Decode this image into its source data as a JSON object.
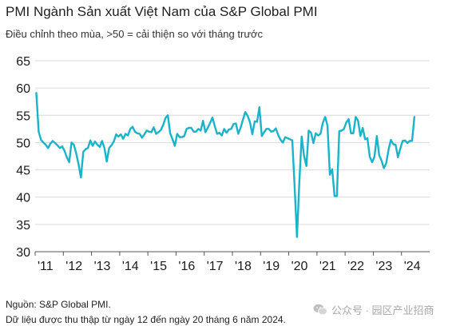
{
  "title": "PMI Ngành Sản xuất Việt Nam của S&P Global PMI",
  "subtitle": "Điều chỉnh theo mùa, >50 = cải thiện so với tháng trước",
  "source": "Nguồn: S&P Global PMI.",
  "note": "Dữ liệu được thu thập từ ngày 12 đến ngày 20 tháng 6 năm 2024.",
  "watermark": {
    "icon": "wechat-icon",
    "text": "公众号 · 园区产业招商"
  },
  "colors": {
    "line": "#1ab3c9",
    "grid": "#d9d9d9",
    "axis": "#555555",
    "text": "#1a1a1a"
  },
  "chart_data": {
    "type": "line",
    "title": "PMI Ngành Sản xuất Việt Nam của S&P Global PMI",
    "subtitle": "Điều chỉnh theo mùa, >50 = cải thiện so với tháng trước",
    "xlabel": "",
    "ylabel": "",
    "ylim": [
      30,
      65
    ],
    "yticks": [
      30,
      35,
      40,
      45,
      50,
      55,
      60,
      65
    ],
    "xticks": [
      "'11",
      "'12",
      "'13",
      "'14",
      "'15",
      "'16",
      "'17",
      "'18",
      "'19",
      "'20",
      "'21",
      "'22",
      "'23",
      "'24"
    ],
    "grid": "horizontal",
    "legend": "none",
    "series": [
      {
        "values": [
          59.1,
          52.0,
          50.5,
          50.0,
          49.6,
          49.0,
          49.8,
          50.3,
          49.9,
          49.5,
          49.0,
          49.3,
          48.5,
          47.3,
          46.4,
          50.0,
          49.6,
          48.0,
          46.0,
          43.6,
          48.3,
          48.8,
          49.0,
          50.4,
          49.4,
          50.2,
          49.6,
          49.2,
          50.3,
          49.0,
          46.5,
          49.0,
          49.5,
          50.2,
          51.5,
          51.1,
          51.5,
          50.7,
          51.6,
          51.3,
          52.5,
          52.9,
          52.0,
          51.7,
          51.6,
          50.9,
          51.5,
          52.2,
          52.0,
          51.9,
          52.8,
          51.6,
          51.9,
          52.3,
          53.2,
          54.5,
          55.0,
          51.7,
          50.6,
          49.4,
          51.6,
          51.0,
          51.0,
          51.2,
          52.5,
          52.7,
          52.7,
          52.0,
          52.0,
          52.5,
          52.2,
          54.0,
          51.9,
          52.7,
          53.6,
          54.6,
          53.0,
          51.6,
          51.8,
          51.3,
          52.5,
          51.8,
          52.4,
          52.5,
          53.4,
          53.5,
          51.6,
          52.7,
          54.2,
          55.6,
          54.9,
          53.7,
          51.5,
          53.9,
          53.8,
          56.5,
          51.2,
          51.9,
          52.5,
          52.5,
          52.0,
          52.1,
          52.6,
          51.4,
          50.5,
          50.0,
          51.0,
          50.8,
          50.6,
          50.4,
          41.9,
          32.7,
          42.7,
          51.1,
          47.6,
          45.7,
          52.2,
          51.8,
          49.9,
          51.7,
          51.3,
          51.6,
          53.6,
          54.7,
          53.1,
          44.1,
          45.1,
          40.2,
          40.2,
          52.1,
          52.2,
          52.5,
          53.7,
          54.3,
          51.7,
          51.7,
          54.7,
          54.0,
          51.2,
          52.7,
          50.6,
          50.8,
          47.4,
          46.4,
          47.4,
          51.2,
          47.7,
          46.7,
          45.3,
          46.2,
          48.7,
          50.5,
          49.7,
          49.6,
          47.3,
          48.9,
          50.3,
          50.4,
          49.9,
          50.3,
          50.3,
          54.7
        ],
        "color": "#1ab3c9"
      }
    ]
  }
}
